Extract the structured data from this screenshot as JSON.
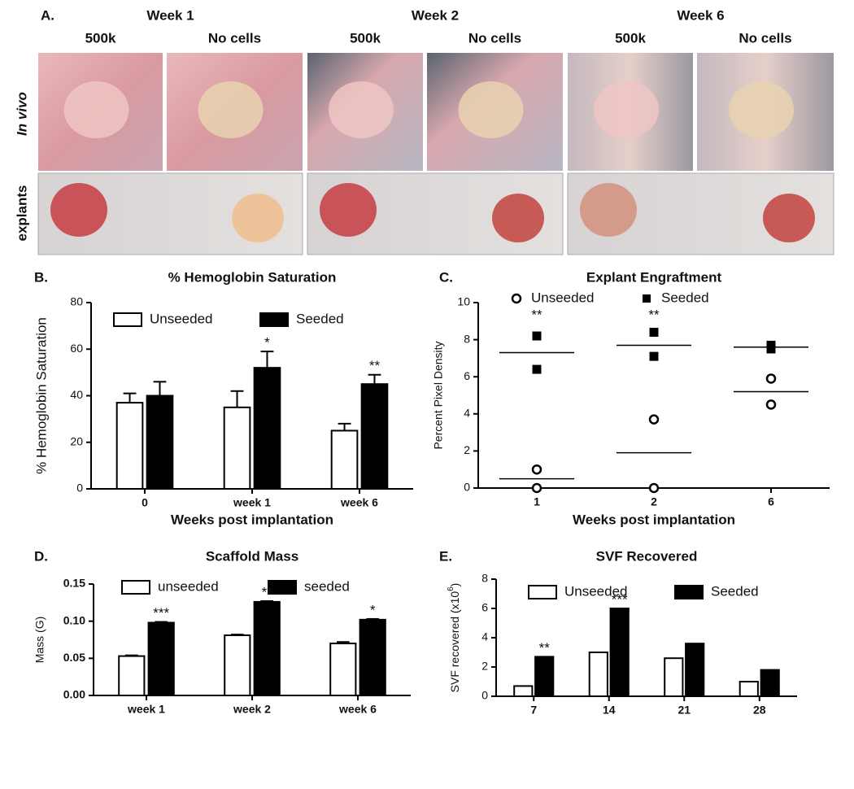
{
  "panel_a": {
    "label": "A.",
    "row_labels": [
      "In vivo",
      "explants"
    ],
    "groups": [
      {
        "title": "Week 1",
        "columns": [
          "500k",
          "No cells"
        ]
      },
      {
        "title": "Week 2",
        "columns": [
          "500k",
          "No cells"
        ]
      },
      {
        "title": "Week 6",
        "columns": [
          "500k",
          "No cells"
        ]
      }
    ]
  },
  "chart_data": [
    {
      "type": "bar",
      "label": "B.",
      "title": "% Hemoglobin Saturation",
      "y_label": "% Hemoglobin Saturation",
      "x_label": "Weeks post implantation",
      "categories": [
        "0",
        "week 1",
        "week 6"
      ],
      "series": [
        {
          "name": "Unseeded",
          "color": "#ffffff",
          "values": [
            37,
            35,
            25
          ],
          "errors": [
            4,
            7,
            3
          ],
          "annotations": [
            null,
            null,
            null
          ]
        },
        {
          "name": "Seeded",
          "color": "#000000",
          "values": [
            40,
            52,
            45
          ],
          "errors": [
            6,
            7,
            4
          ],
          "annotations": [
            null,
            "*",
            "**"
          ]
        }
      ],
      "ylim": [
        0,
        80
      ],
      "yticks": [
        0,
        20,
        40,
        60,
        80
      ]
    },
    {
      "type": "scatter",
      "label": "C.",
      "title": "Explant Engraftment",
      "y_label": "Percent Pixel Density",
      "x_label": "Weeks post implantation",
      "categories": [
        "1",
        "2",
        "6"
      ],
      "annotations": [
        "**",
        "**",
        null
      ],
      "series": [
        {
          "name": "Unseeded",
          "marker": "open-circle",
          "color": "#000000",
          "values": [
            [
              1.0,
              0.0
            ],
            [
              3.7,
              0.0
            ],
            [
              5.9,
              4.5
            ]
          ],
          "means": [
            0.5,
            1.9,
            5.2
          ]
        },
        {
          "name": "Seeded",
          "marker": "filled-square",
          "color": "#000000",
          "values": [
            [
              8.2,
              6.4
            ],
            [
              8.4,
              7.1
            ],
            [
              7.5,
              7.7
            ]
          ],
          "means": [
            7.3,
            7.7,
            7.6
          ]
        }
      ],
      "ylim": [
        0,
        10
      ],
      "yticks": [
        0,
        2,
        4,
        6,
        8,
        10
      ]
    },
    {
      "type": "bar",
      "label": "D.",
      "title": "Scaffold Mass",
      "y_label": "Mass (G)",
      "categories": [
        "week 1",
        "week 2",
        "week 6"
      ],
      "series": [
        {
          "name": "unseeded",
          "color": "#ffffff",
          "values": [
            0.053,
            0.081,
            0.07
          ],
          "errors": [
            0.001,
            0.001,
            0.002
          ],
          "annotations": [
            null,
            null,
            null
          ]
        },
        {
          "name": "seeded",
          "color": "#000000",
          "values": [
            0.098,
            0.126,
            0.102
          ],
          "errors": [
            0.001,
            0.001,
            0.001
          ],
          "annotations": [
            "***",
            "**",
            "*"
          ]
        }
      ],
      "ylim": [
        0,
        0.15
      ],
      "yticks": [
        {
          "value": 0,
          "label": "0.00"
        },
        {
          "value": 0.05,
          "label": "0.05"
        },
        {
          "value": 0.1,
          "label": "0.10"
        },
        {
          "value": 0.15,
          "label": "0.15"
        }
      ]
    },
    {
      "type": "bar",
      "label": "E.",
      "title": "SVF Recovered",
      "y_label": [
        "SVF recovered (x10",
        "6",
        ")"
      ],
      "categories": [
        "7",
        "14",
        "21",
        "28"
      ],
      "series": [
        {
          "name": "Unseeded",
          "color": "#ffffff",
          "values": [
            0.7,
            3.0,
            2.6,
            1.0
          ],
          "annotations": [
            null,
            null,
            null,
            null
          ]
        },
        {
          "name": "Seeded",
          "color": "#000000",
          "values": [
            2.7,
            6.0,
            3.6,
            1.8
          ],
          "annotations": [
            "**",
            "***",
            null,
            null
          ]
        }
      ],
      "ylim": [
        0,
        8
      ],
      "yticks": [
        0,
        2,
        4,
        6,
        8
      ]
    }
  ]
}
